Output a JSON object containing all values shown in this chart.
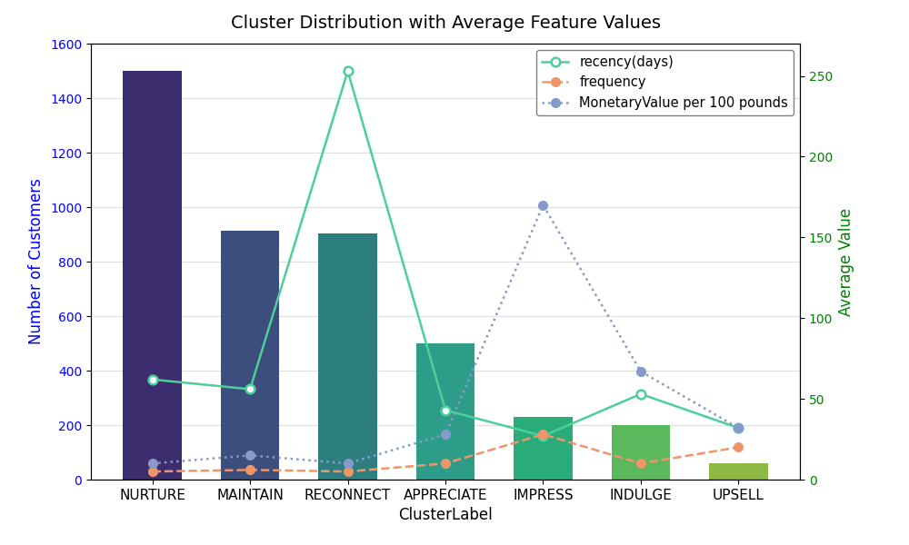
{
  "title": "Cluster Distribution with Average Feature Values",
  "xlabel": "ClusterLabel",
  "ylabel_left": "Number of Customers",
  "ylabel_right": "Average Value",
  "categories": [
    "NURTURE",
    "MAINTAIN",
    "RECONNECT",
    "APPRECIATE",
    "IMPRESS",
    "INDULGE",
    "UPSELL"
  ],
  "bar_heights": [
    1500,
    915,
    905,
    500,
    230,
    200,
    60
  ],
  "bar_colors": [
    "#3b2d6e",
    "#3b4e7e",
    "#2d7f7f",
    "#2d9d8a",
    "#2aab7a",
    "#5cb85c",
    "#8db843"
  ],
  "recency_values": [
    62,
    56,
    253,
    43,
    27,
    53,
    32
  ],
  "frequency_values": [
    5,
    6,
    5,
    10,
    28,
    10,
    20
  ],
  "monetary_values": [
    10,
    15,
    10,
    28,
    170,
    67,
    32
  ],
  "recency_color": "#4dcf9a",
  "frequency_color": "#f0956a",
  "monetary_color": "#8899cc",
  "ylim_left": [
    0,
    1600
  ],
  "ylim_right": [
    0,
    270
  ],
  "legend_labels": [
    "recency(days)",
    "frequency",
    "MonetaryValue per 100 pounds"
  ],
  "figsize": [
    10.0,
    6.0
  ],
  "dpi": 100
}
